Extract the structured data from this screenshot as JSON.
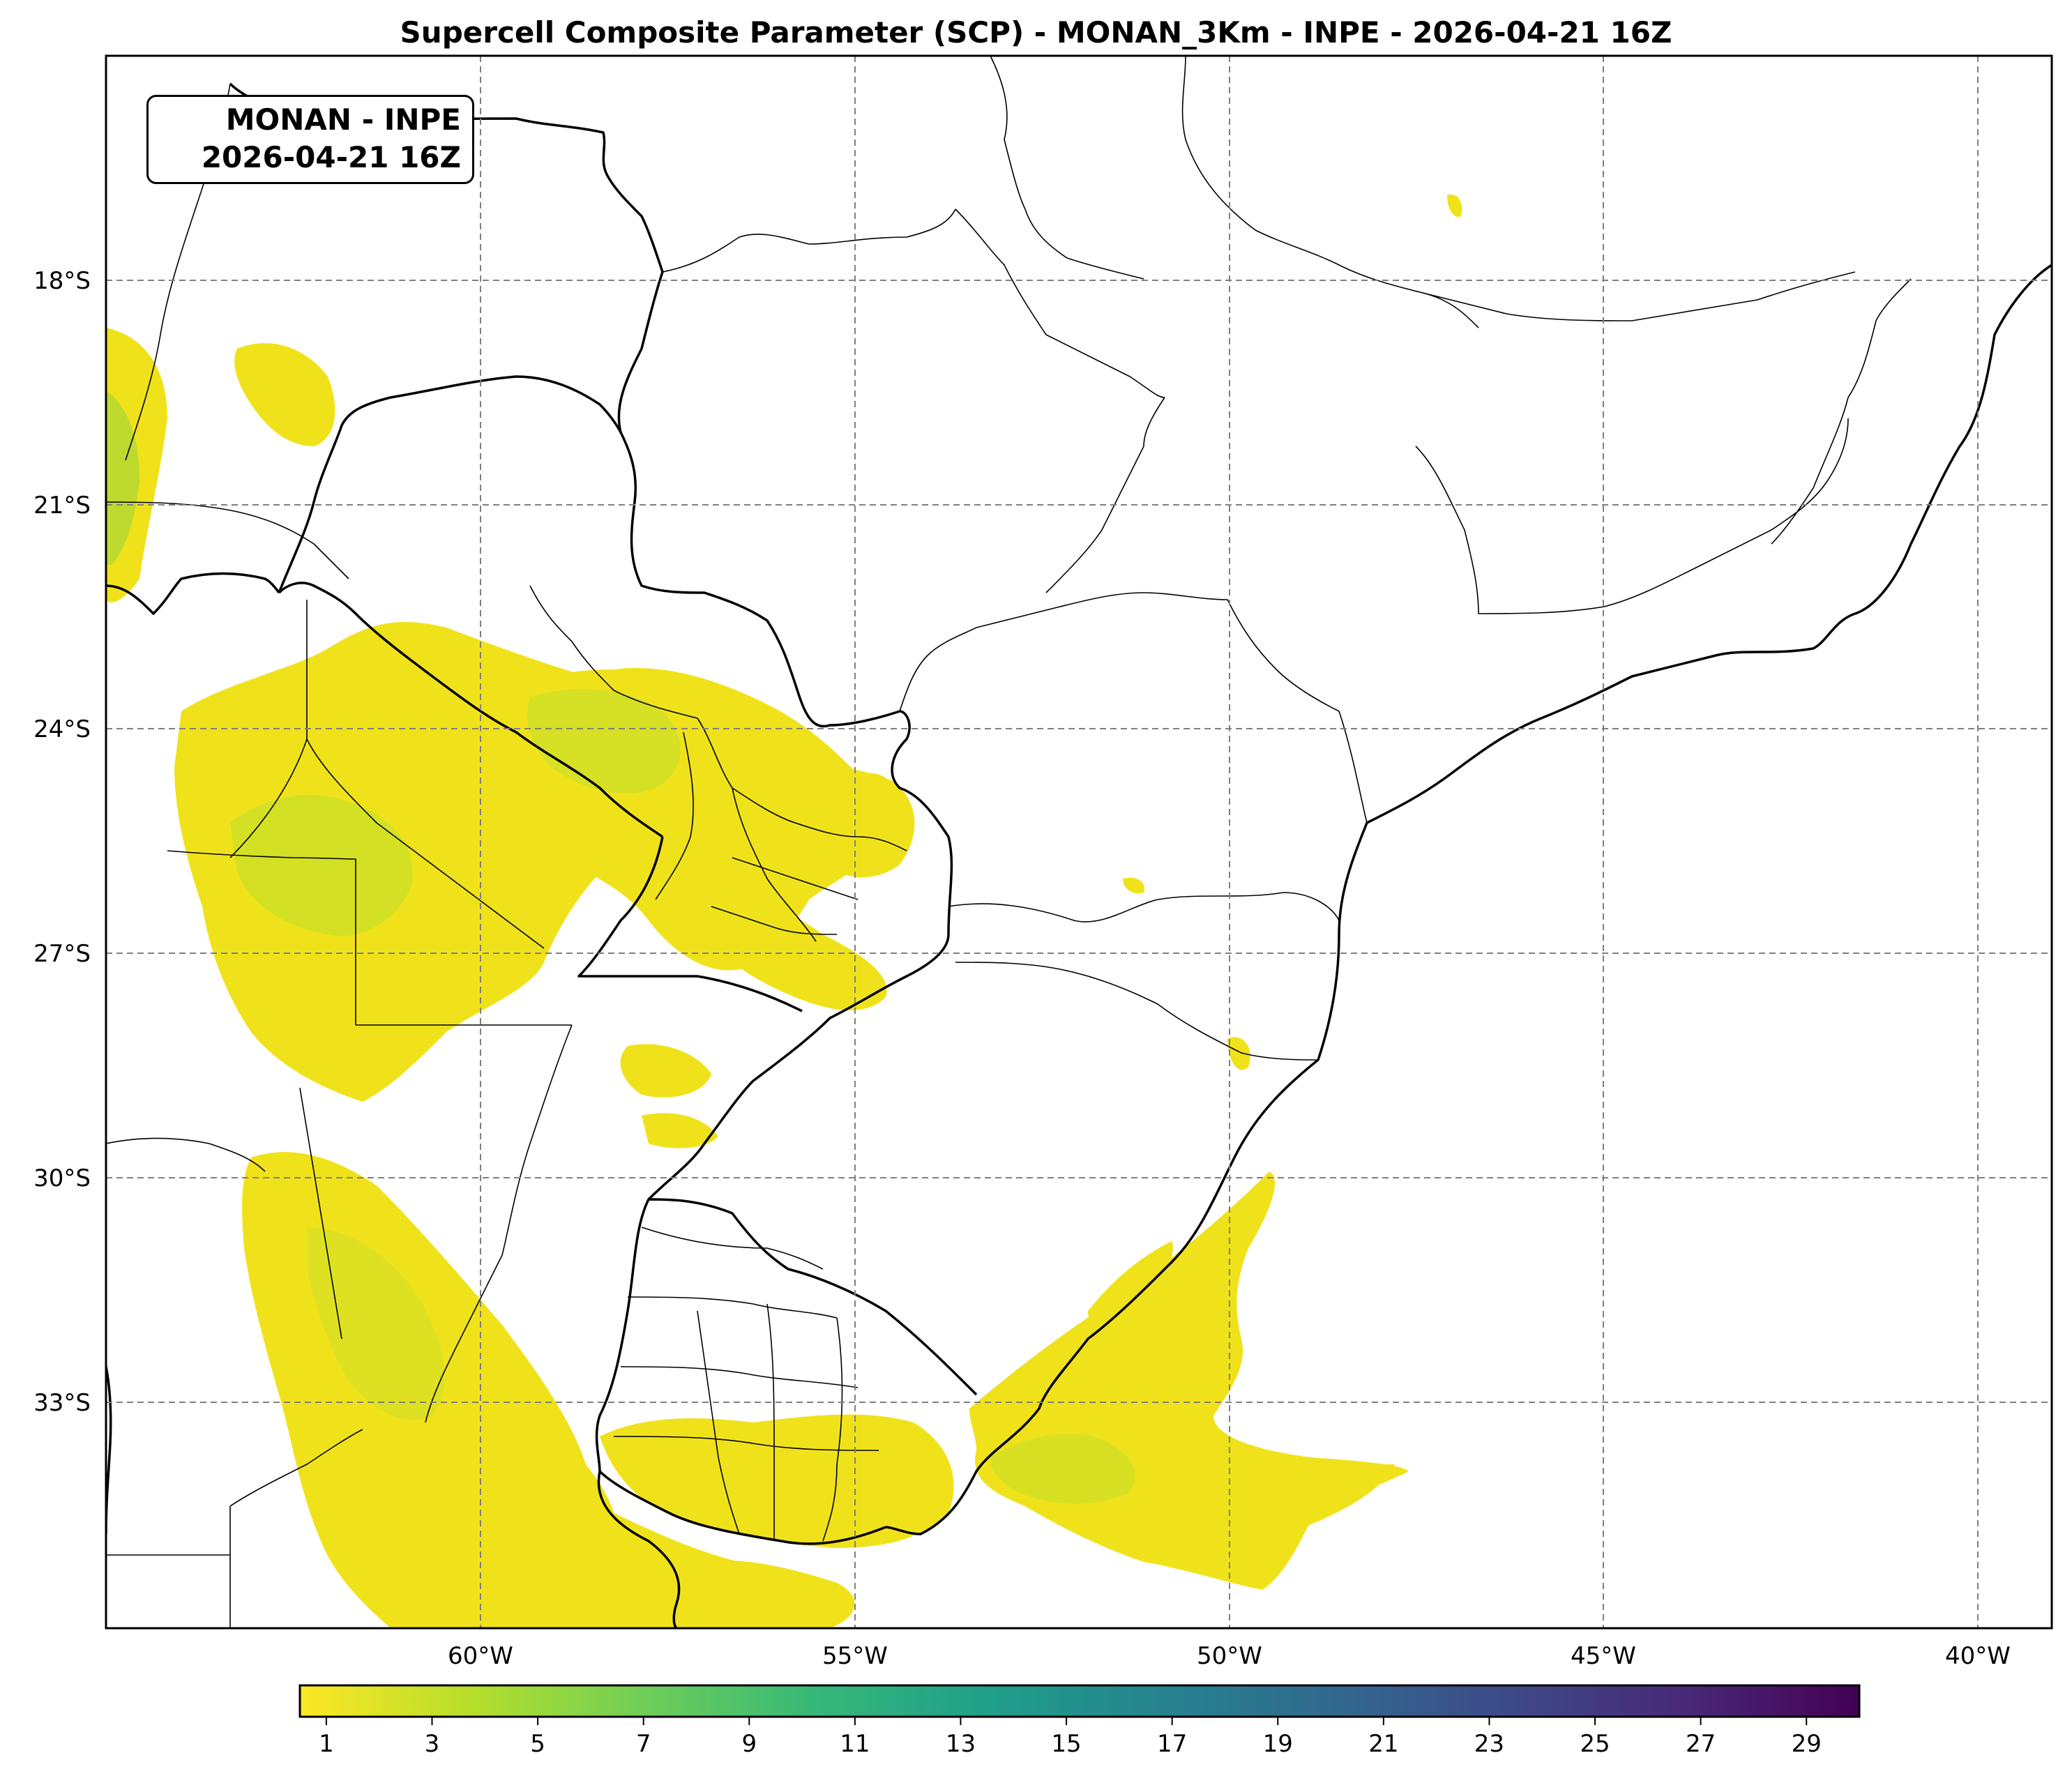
{
  "title": "Supercell Composite Parameter (SCP) - MONAN_3Km - INPE - 2026-04-21 16Z",
  "stamp": {
    "line1": "MONAN - INPE",
    "line2": "2026-04-21 16Z"
  },
  "map": {
    "lat_ticks": [
      "18°S",
      "21°S",
      "24°S",
      "27°S",
      "30°S",
      "33°S"
    ],
    "lon_ticks": [
      "60°W",
      "55°W",
      "50°W",
      "45°W",
      "40°W"
    ],
    "field_colors": {
      "low": "#f0e21a",
      "mid": "#c8df2a",
      "high": "#9fd63c"
    }
  },
  "colorbar": {
    "colormap": "viridis_r",
    "ticks": [
      "1",
      "3",
      "5",
      "7",
      "9",
      "11",
      "13",
      "15",
      "17",
      "19",
      "21",
      "23",
      "25",
      "27",
      "29"
    ],
    "colors": [
      "#fde725",
      "#b5de2b",
      "#6ece58",
      "#35b779",
      "#1f9e89",
      "#26828e",
      "#31688e",
      "#3e4989",
      "#482878",
      "#440154"
    ]
  }
}
